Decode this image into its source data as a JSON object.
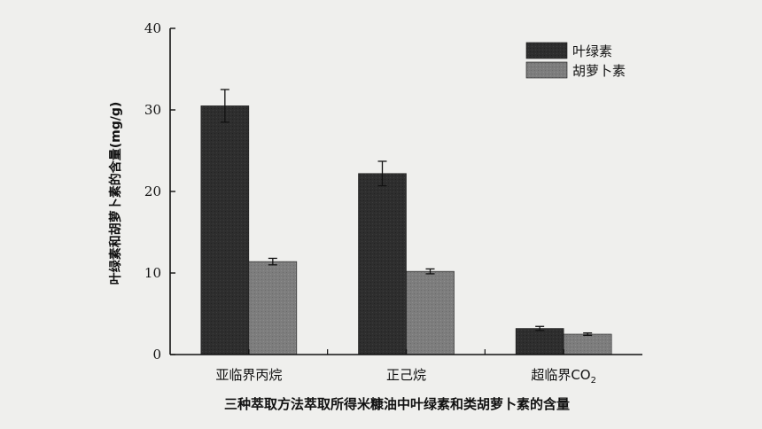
{
  "chart_data": {
    "type": "bar",
    "title": "三种萃取方法萃取所得米糠油中叶绿素和类胡萝卜素的含量",
    "xlabel": "",
    "ylabel": "叶绿素和胡萝卜素的含量(mg/g)",
    "ylim": [
      0,
      40
    ],
    "yticks": [
      0,
      10,
      20,
      30,
      40
    ],
    "categories": [
      "亚临界丙烷",
      "正己烷",
      "超临界CO"
    ],
    "category_subscripts": [
      "",
      "",
      "2"
    ],
    "legend_position": "top-right",
    "grid": false,
    "series": [
      {
        "name": "叶绿素",
        "color": "#2e2e2e",
        "values": [
          30.5,
          22.2,
          3.2
        ],
        "errors": [
          2.0,
          1.5,
          0.25
        ]
      },
      {
        "name": "胡萝卜素",
        "color": "#7d7d7d",
        "values": [
          11.4,
          10.2,
          2.5
        ],
        "errors": [
          0.4,
          0.3,
          0.15
        ]
      }
    ]
  }
}
